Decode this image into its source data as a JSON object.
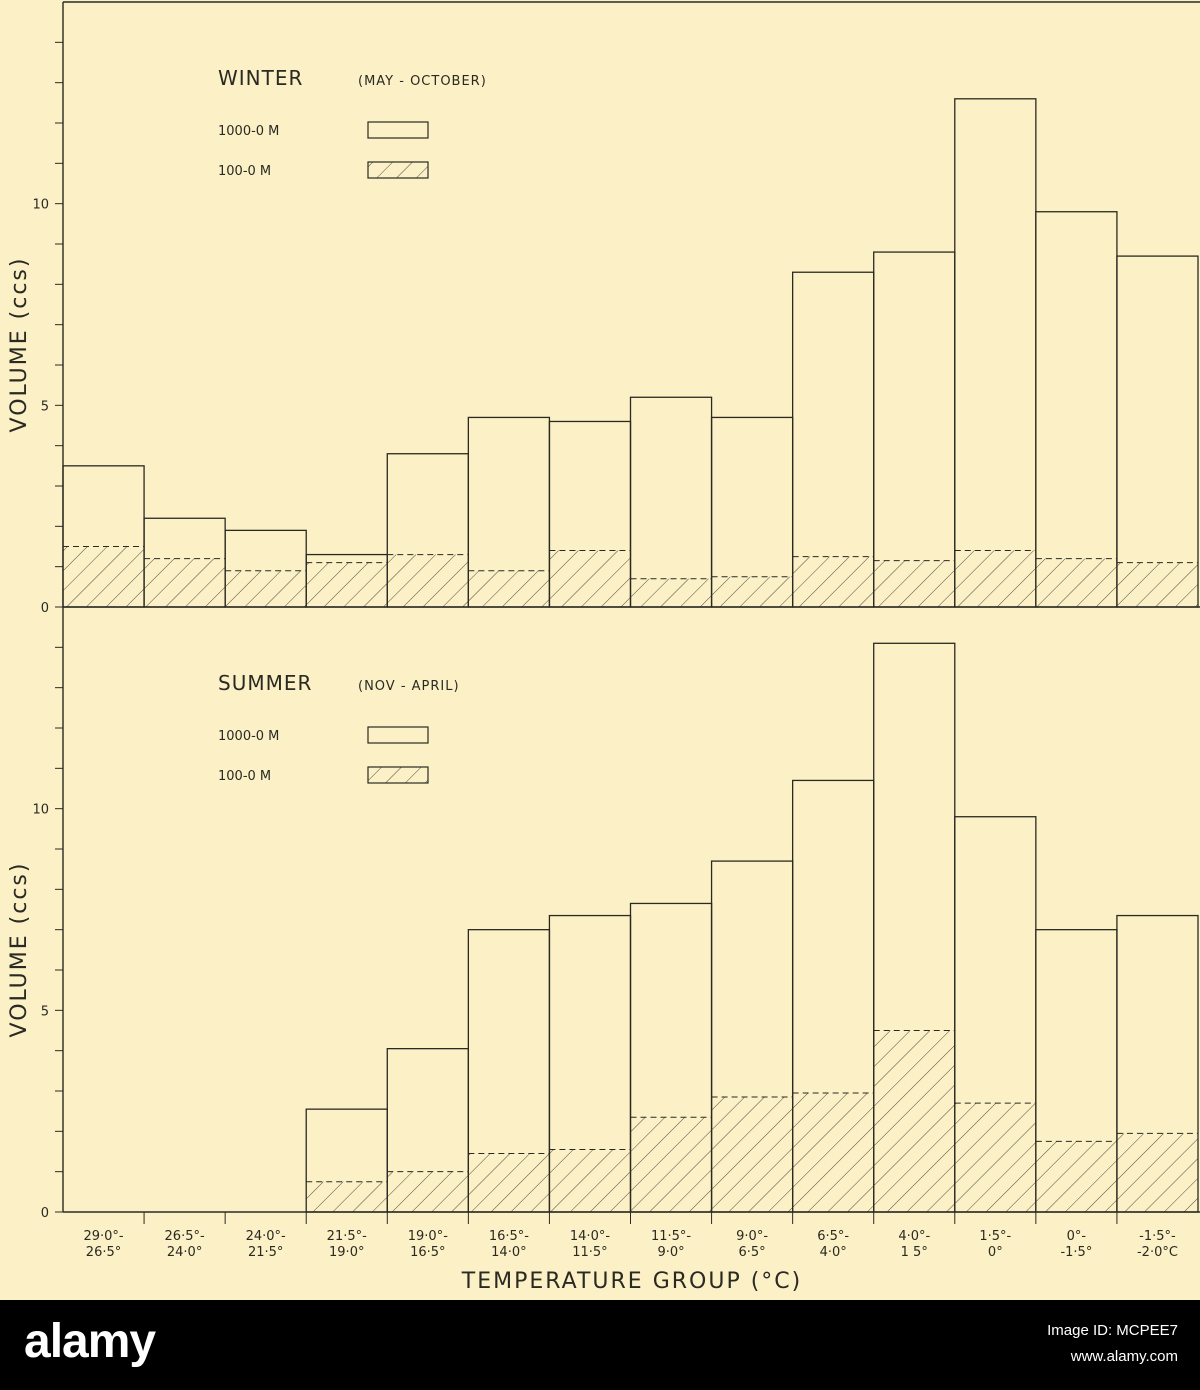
{
  "chart_data": [
    {
      "type": "bar",
      "panel": "top",
      "title": "WINTER",
      "subtitle": "(MAY - OCTOBER)",
      "ylabel": "VOLUME (ccs)",
      "ylim": [
        0,
        15
      ],
      "yticks": [
        0,
        5,
        10
      ],
      "minor_tick_step": 1,
      "grid": false,
      "legend_placement": "top-left",
      "categories": [
        "29·0°-26·5°",
        "26·5°-24·0°",
        "24·0°-21·5°",
        "21·5°-19·0°",
        "19·0°-16·5°",
        "16·5°-14·0°",
        "14·0°-11·5°",
        "11·5°-9·0°",
        "9·0°-6·5°",
        "6·5°-4·0°",
        "4·0°-1·5°",
        "1·5°-0°",
        "0°--1·5°",
        "-1·5°--2·0°C"
      ],
      "series": [
        {
          "name": "1000-0 M",
          "style": "open",
          "values": [
            3.5,
            2.2,
            1.9,
            1.3,
            3.8,
            4.7,
            4.6,
            5.2,
            4.7,
            8.3,
            8.8,
            12.6,
            9.8,
            8.7
          ]
        },
        {
          "name": "100-0 M",
          "style": "hatched",
          "values": [
            1.5,
            1.2,
            0.9,
            1.1,
            1.3,
            0.9,
            1.4,
            0.7,
            0.75,
            1.25,
            1.15,
            1.4,
            1.2,
            1.1
          ]
        }
      ]
    },
    {
      "type": "bar",
      "panel": "bottom",
      "title": "SUMMER",
      "subtitle": "(NOV - APRIL)",
      "ylabel": "VOLUME (ccs)",
      "xlabel": "TEMPERATURE GROUP (°C)",
      "ylim": [
        0,
        15
      ],
      "yticks": [
        0,
        5,
        10
      ],
      "minor_tick_step": 1,
      "grid": false,
      "legend_placement": "top-left",
      "categories": [
        "29·0°-26·5°",
        "26·5°-24·0°",
        "24·0°-21·5°",
        "21·5°-19·0°",
        "19·0°-16·5°",
        "16·5°-14·0°",
        "14·0°-11·5°",
        "11·5°-9·0°",
        "9·0°-6·5°",
        "6·5°-4·0°",
        "4·0°-1·5°",
        "1·5°-0°",
        "0°--1·5°",
        "-1·5°--2·0°C"
      ],
      "x_tick_labels": [
        [
          "29·0°-",
          "26·5°"
        ],
        [
          "26·5°-",
          "24·0°"
        ],
        [
          "24·0°-",
          "21·5°"
        ],
        [
          "21·5°-",
          "19·0°"
        ],
        [
          "19·0°-",
          "16·5°"
        ],
        [
          "16·5°-",
          "14·0°"
        ],
        [
          "14·0°-",
          "11·5°"
        ],
        [
          "11·5°-",
          "9·0°"
        ],
        [
          "9·0°-",
          "6·5°"
        ],
        [
          "6·5°-",
          "4·0°"
        ],
        [
          "4·0°-",
          "1 5°"
        ],
        [
          "1·5°-",
          "0°"
        ],
        [
          "0°-",
          "-1·5°"
        ],
        [
          "-1·5°-",
          "-2·0°C"
        ]
      ],
      "series": [
        {
          "name": "1000-0 M",
          "style": "open",
          "values": [
            0,
            0,
            0,
            2.55,
            4.05,
            7.0,
            7.35,
            7.65,
            8.7,
            10.7,
            14.1,
            9.8,
            7.0,
            7.35
          ]
        },
        {
          "name": "100-0 M",
          "style": "hatched",
          "values": [
            0,
            0,
            0,
            0.75,
            1.0,
            1.45,
            1.55,
            2.35,
            2.85,
            2.95,
            4.5,
            2.7,
            1.75,
            1.95
          ]
        }
      ]
    }
  ],
  "colors": {
    "background": "#fbf0c6",
    "ink": "#2a2a22"
  },
  "watermark": {
    "logo": "alamy",
    "image_id": "Image ID: MCPEE7",
    "url": "www.alamy.com"
  }
}
